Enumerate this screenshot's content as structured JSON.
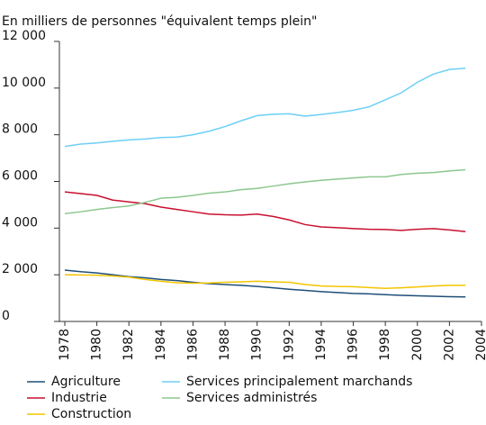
{
  "chart_data": {
    "type": "line",
    "subtitle": "En milliers de personnes \"équivalent temps plein\"",
    "x": [
      1978,
      1979,
      1980,
      1981,
      1982,
      1983,
      1984,
      1985,
      1986,
      1987,
      1988,
      1989,
      1990,
      1991,
      1992,
      1993,
      1994,
      1995,
      1996,
      1997,
      1998,
      1999,
      2000,
      2001,
      2002,
      2003
    ],
    "xlim": [
      1978,
      2004
    ],
    "xticks": [
      1978,
      1980,
      1982,
      1984,
      1986,
      1988,
      1990,
      1992,
      1994,
      1996,
      1998,
      2000,
      2002,
      2004
    ],
    "ylim": [
      0,
      12000
    ],
    "yticks": [
      0,
      {
        "value": 2000,
        "label": "2 000"
      },
      {
        "value": 4000,
        "label": "4 000"
      },
      {
        "value": 6000,
        "label": "6 000"
      },
      {
        "value": 8000,
        "label": "8 000"
      },
      {
        "value": 10000,
        "label": "10 000"
      },
      {
        "value": 12000,
        "label": "12 000"
      }
    ],
    "series": [
      {
        "name": "Agriculture",
        "color": "#1f4e79",
        "values": [
          2200,
          2130,
          2080,
          2000,
          1920,
          1870,
          1800,
          1750,
          1680,
          1620,
          1580,
          1550,
          1500,
          1440,
          1380,
          1330,
          1280,
          1240,
          1200,
          1180,
          1150,
          1120,
          1100,
          1080,
          1060,
          1050
        ]
      },
      {
        "name": "Industrie",
        "color": "#c8102e",
        "values": [
          5550,
          5480,
          5400,
          5200,
          5120,
          5050,
          4900,
          4800,
          4700,
          4600,
          4570,
          4560,
          4600,
          4500,
          4350,
          4150,
          4050,
          4020,
          3980,
          3950,
          3940,
          3900,
          3950,
          3980,
          3920,
          3850
        ]
      },
      {
        "name": "Construction",
        "color": "#f2c500",
        "values": [
          2000,
          1990,
          1980,
          1950,
          1900,
          1800,
          1720,
          1660,
          1640,
          1650,
          1680,
          1700,
          1720,
          1700,
          1680,
          1580,
          1520,
          1500,
          1490,
          1450,
          1420,
          1440,
          1480,
          1520,
          1550,
          1550
        ]
      },
      {
        "name": "Services principalement marchands",
        "color": "#6dcff6",
        "values": [
          7500,
          7600,
          7650,
          7720,
          7780,
          7820,
          7880,
          7900,
          8000,
          8150,
          8350,
          8600,
          8820,
          8880,
          8900,
          8800,
          8870,
          8950,
          9050,
          9200,
          9500,
          9800,
          10250,
          10600,
          10800,
          10850
        ]
      },
      {
        "name": "Services administrés",
        "color": "#8dc78f",
        "values": [
          4620,
          4700,
          4800,
          4880,
          4950,
          5100,
          5280,
          5320,
          5400,
          5500,
          5550,
          5650,
          5700,
          5800,
          5900,
          5980,
          6050,
          6100,
          6150,
          6200,
          6200,
          6300,
          6350,
          6380,
          6450,
          6500
        ]
      }
    ]
  }
}
